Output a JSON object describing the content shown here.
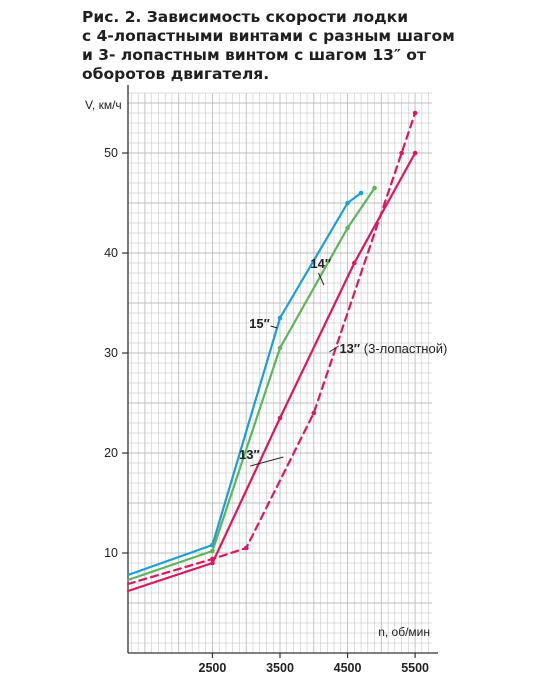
{
  "caption": {
    "lines": [
      "Рис. 2. Зависимость скорости лодки",
      "с 4-лопастными винтами с разным шагом",
      "и 3- лопастным винтом с шагом 13″ от",
      "оборотов двигателя."
    ]
  },
  "chart_data": {
    "type": "line",
    "ylabel": "V, км/ч",
    "xlabel": "n, об/мин",
    "xlim": [
      1250,
      5750
    ],
    "ylim": [
      0,
      56
    ],
    "x_ticks": [
      2500,
      3500,
      4500,
      5500
    ],
    "y_ticks": [
      10,
      20,
      30,
      40,
      50
    ],
    "grid": true,
    "colors": {
      "blue": "#1b9fd8",
      "green": "#5db55a",
      "red": "#e0155f",
      "grid": "#bdbdbd"
    },
    "series": [
      {
        "name": "15″",
        "label_text": "15″",
        "label_note": "",
        "color": "#1b9fd8",
        "dash": false,
        "label_at": [
          3350,
          32.5
        ],
        "label_anchor": "end",
        "leader": [
          [
            3360,
            32.7
          ],
          [
            3460,
            32.5
          ]
        ],
        "points": [
          [
            1250,
            7.8
          ],
          [
            2500,
            10.8
          ],
          [
            3500,
            33.5
          ],
          [
            4500,
            45.0
          ],
          [
            4700,
            46.0
          ]
        ]
      },
      {
        "name": "14″",
        "label_text": "14″",
        "label_note": "",
        "color": "#5db55a",
        "dash": false,
        "label_at": [
          3950,
          38.5
        ],
        "label_anchor": "start",
        "leader": [
          [
            4070,
            38.0
          ],
          [
            4150,
            36.8
          ]
        ],
        "points": [
          [
            1250,
            7.3
          ],
          [
            2500,
            10.2
          ],
          [
            3500,
            30.5
          ],
          [
            4500,
            42.5
          ],
          [
            4900,
            46.5
          ]
        ]
      },
      {
        "name": "13″",
        "label_text": "13″",
        "label_note": "",
        "color": "#e0155f",
        "dash": false,
        "label_at": [
          3200,
          19.4
        ],
        "label_anchor": "end",
        "leader": [
          [
            3060,
            18.7
          ],
          [
            3550,
            19.6
          ]
        ],
        "points": [
          [
            1250,
            6.2
          ],
          [
            2500,
            9.0
          ],
          [
            3500,
            23.5
          ],
          [
            4600,
            39.0
          ],
          [
            5500,
            50.0
          ]
        ]
      },
      {
        "name": "13″ (3-лопастной)",
        "label_text": "13″",
        "label_note": " (3-лопастной)",
        "color": "#e0155f",
        "dash": true,
        "label_at": [
          4380,
          30.0
        ],
        "label_anchor": "start",
        "leader": [
          [
            4230,
            30.1
          ],
          [
            4370,
            30.7
          ]
        ],
        "points": [
          [
            1250,
            6.9
          ],
          [
            2500,
            9.4
          ],
          [
            3000,
            10.5
          ],
          [
            4000,
            24.0
          ],
          [
            5300,
            50.0
          ],
          [
            5500,
            54.0
          ]
        ]
      }
    ]
  }
}
